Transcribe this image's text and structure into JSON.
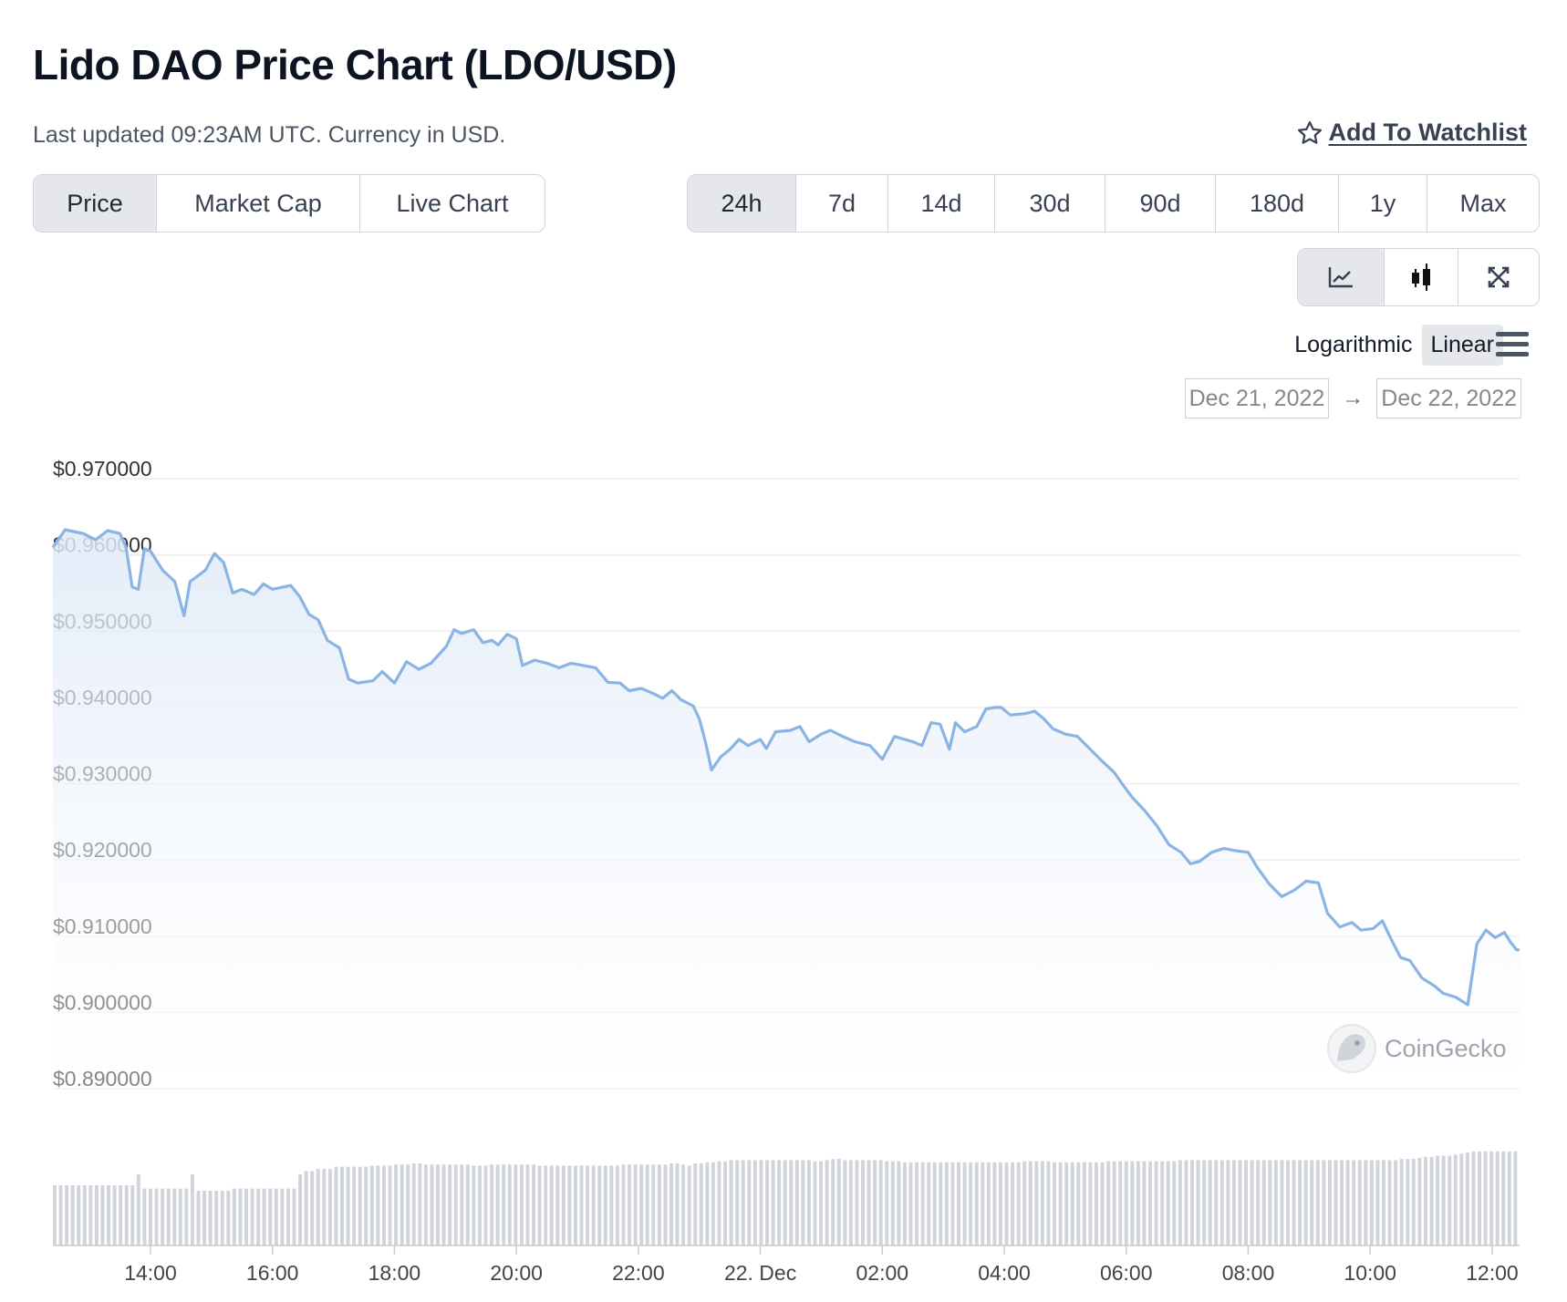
{
  "header": {
    "title": "Lido DAO Price Chart (LDO/USD)",
    "updated": "Last updated 09:23AM UTC. Currency in USD.",
    "watchlist_label": "Add To Watchlist"
  },
  "view_tabs": [
    {
      "label": "Price",
      "active": true
    },
    {
      "label": "Market Cap",
      "active": false
    },
    {
      "label": "Live Chart",
      "active": false
    }
  ],
  "range_tabs": [
    {
      "label": "24h",
      "active": true
    },
    {
      "label": "7d",
      "active": false
    },
    {
      "label": "14d",
      "active": false
    },
    {
      "label": "30d",
      "active": false
    },
    {
      "label": "90d",
      "active": false
    },
    {
      "label": "180d",
      "active": false
    },
    {
      "label": "1y",
      "active": false
    },
    {
      "label": "Max",
      "active": false
    }
  ],
  "tools": [
    "line-chart-icon",
    "candlestick-icon",
    "fullscreen-icon"
  ],
  "scale": {
    "options": [
      "Logarithmic",
      "Linear"
    ],
    "active": "Linear"
  },
  "date_range": {
    "from": "Dec 21, 2022",
    "to": "Dec 22, 2022",
    "arrow": "→"
  },
  "watermark": "CoinGecko",
  "colors": {
    "line": "#8ab4e3",
    "volume": "#d1d5db",
    "grid": "#eeeeee"
  },
  "chart_data": {
    "type": "line",
    "ylim": [
      0.89,
      0.97
    ],
    "y_ticks": [
      "$0.970000",
      "$0.960000",
      "$0.950000",
      "$0.940000",
      "$0.930000",
      "$0.920000",
      "$0.910000",
      "$0.900000",
      "$0.890000"
    ],
    "x_ticks": [
      {
        "label": "14:00",
        "t": 14
      },
      {
        "label": "16:00",
        "t": 16
      },
      {
        "label": "18:00",
        "t": 18
      },
      {
        "label": "20:00",
        "t": 20
      },
      {
        "label": "22:00",
        "t": 22
      },
      {
        "label": "22. Dec",
        "t": 24
      },
      {
        "label": "02:00",
        "t": 26
      },
      {
        "label": "04:00",
        "t": 28
      },
      {
        "label": "06:00",
        "t": 30
      },
      {
        "label": "08:00",
        "t": 32
      },
      {
        "label": "10:00",
        "t": 34
      },
      {
        "label": "12:00",
        "t": 36
      }
    ],
    "x_range": [
      12.4,
      36.45
    ],
    "series": [
      {
        "values": [
          [
            12.4,
            0.961
          ],
          [
            12.6,
            0.9633
          ],
          [
            12.9,
            0.9628
          ],
          [
            13.1,
            0.962
          ],
          [
            13.3,
            0.9632
          ],
          [
            13.5,
            0.9628
          ],
          [
            13.6,
            0.961
          ],
          [
            13.7,
            0.9558
          ],
          [
            13.8,
            0.9555
          ],
          [
            13.9,
            0.9608
          ],
          [
            14.0,
            0.9605
          ],
          [
            14.2,
            0.958
          ],
          [
            14.4,
            0.9565
          ],
          [
            14.55,
            0.952
          ],
          [
            14.65,
            0.9565
          ],
          [
            14.9,
            0.958
          ],
          [
            15.05,
            0.9602
          ],
          [
            15.2,
            0.959
          ],
          [
            15.35,
            0.955
          ],
          [
            15.5,
            0.9555
          ],
          [
            15.7,
            0.9548
          ],
          [
            15.85,
            0.9562
          ],
          [
            16.0,
            0.9555
          ],
          [
            16.3,
            0.956
          ],
          [
            16.45,
            0.9545
          ],
          [
            16.6,
            0.9522
          ],
          [
            16.75,
            0.9515
          ],
          [
            16.9,
            0.9488
          ],
          [
            17.1,
            0.9478
          ],
          [
            17.25,
            0.9437
          ],
          [
            17.4,
            0.9432
          ],
          [
            17.65,
            0.9435
          ],
          [
            17.8,
            0.9447
          ],
          [
            18.0,
            0.9432
          ],
          [
            18.2,
            0.946
          ],
          [
            18.4,
            0.945
          ],
          [
            18.6,
            0.9458
          ],
          [
            18.85,
            0.948
          ],
          [
            18.98,
            0.9502
          ],
          [
            19.1,
            0.9497
          ],
          [
            19.3,
            0.9502
          ],
          [
            19.45,
            0.9485
          ],
          [
            19.6,
            0.9488
          ],
          [
            19.7,
            0.9482
          ],
          [
            19.85,
            0.9496
          ],
          [
            20.0,
            0.949
          ],
          [
            20.1,
            0.9455
          ],
          [
            20.3,
            0.9462
          ],
          [
            20.5,
            0.9458
          ],
          [
            20.7,
            0.9452
          ],
          [
            20.9,
            0.9458
          ],
          [
            21.1,
            0.9455
          ],
          [
            21.3,
            0.9452
          ],
          [
            21.5,
            0.9433
          ],
          [
            21.7,
            0.9432
          ],
          [
            21.85,
            0.9422
          ],
          [
            22.05,
            0.9425
          ],
          [
            22.25,
            0.9418
          ],
          [
            22.4,
            0.9412
          ],
          [
            22.55,
            0.9422
          ],
          [
            22.7,
            0.941
          ],
          [
            22.9,
            0.9402
          ],
          [
            23.0,
            0.9385
          ],
          [
            23.1,
            0.9355
          ],
          [
            23.2,
            0.9318
          ],
          [
            23.35,
            0.9335
          ],
          [
            23.5,
            0.9345
          ],
          [
            23.65,
            0.9358
          ],
          [
            23.8,
            0.935
          ],
          [
            24.0,
            0.9358
          ],
          [
            24.1,
            0.9346
          ],
          [
            24.25,
            0.9368
          ],
          [
            24.5,
            0.937
          ],
          [
            24.65,
            0.9375
          ],
          [
            24.8,
            0.9355
          ],
          [
            25.0,
            0.9365
          ],
          [
            25.15,
            0.937
          ],
          [
            25.35,
            0.9362
          ],
          [
            25.55,
            0.9355
          ],
          [
            25.8,
            0.935
          ],
          [
            26.0,
            0.9332
          ],
          [
            26.2,
            0.9362
          ],
          [
            26.5,
            0.9355
          ],
          [
            26.65,
            0.935
          ],
          [
            26.8,
            0.938
          ],
          [
            26.95,
            0.9378
          ],
          [
            27.1,
            0.9345
          ],
          [
            27.2,
            0.938
          ],
          [
            27.35,
            0.9368
          ],
          [
            27.55,
            0.9375
          ],
          [
            27.7,
            0.9398
          ],
          [
            27.85,
            0.94
          ],
          [
            27.95,
            0.94
          ],
          [
            28.1,
            0.939
          ],
          [
            28.35,
            0.9392
          ],
          [
            28.5,
            0.9395
          ],
          [
            28.65,
            0.9385
          ],
          [
            28.8,
            0.9372
          ],
          [
            29.0,
            0.9365
          ],
          [
            29.2,
            0.9362
          ],
          [
            29.35,
            0.935
          ],
          [
            29.6,
            0.933
          ],
          [
            29.8,
            0.9315
          ],
          [
            29.95,
            0.9298
          ],
          [
            30.1,
            0.9282
          ],
          [
            30.3,
            0.9265
          ],
          [
            30.5,
            0.9245
          ],
          [
            30.7,
            0.922
          ],
          [
            30.9,
            0.921
          ],
          [
            31.05,
            0.9195
          ],
          [
            31.2,
            0.9198
          ],
          [
            31.4,
            0.921
          ],
          [
            31.6,
            0.9215
          ],
          [
            31.8,
            0.9212
          ],
          [
            32.0,
            0.921
          ],
          [
            32.15,
            0.919
          ],
          [
            32.35,
            0.9168
          ],
          [
            32.55,
            0.9152
          ],
          [
            32.75,
            0.916
          ],
          [
            32.95,
            0.9172
          ],
          [
            33.15,
            0.917
          ],
          [
            33.3,
            0.913
          ],
          [
            33.5,
            0.9112
          ],
          [
            33.7,
            0.9118
          ],
          [
            33.85,
            0.9108
          ],
          [
            34.05,
            0.911
          ],
          [
            34.2,
            0.912
          ],
          [
            34.35,
            0.9095
          ],
          [
            34.5,
            0.9072
          ],
          [
            34.65,
            0.9068
          ],
          [
            34.85,
            0.9045
          ],
          [
            35.05,
            0.9035
          ],
          [
            35.2,
            0.9025
          ],
          [
            35.4,
            0.902
          ],
          [
            35.6,
            0.901
          ],
          [
            35.75,
            0.909
          ],
          [
            35.9,
            0.9108
          ],
          [
            36.05,
            0.9098
          ],
          [
            36.2,
            0.9105
          ],
          [
            36.3,
            0.9092
          ],
          [
            36.4,
            0.9082
          ],
          [
            36.45,
            0.9082
          ]
        ]
      }
    ],
    "volume_relative": [
      0.55,
      0.55,
      0.55,
      0.55,
      0.55,
      0.55,
      0.55,
      0.55,
      0.55,
      0.55,
      0.55,
      0.55,
      0.55,
      0.55,
      0.65,
      0.52,
      0.52,
      0.52,
      0.52,
      0.52,
      0.52,
      0.52,
      0.52,
      0.65,
      0.5,
      0.5,
      0.5,
      0.5,
      0.5,
      0.5,
      0.52,
      0.52,
      0.52,
      0.52,
      0.52,
      0.52,
      0.52,
      0.52,
      0.52,
      0.52,
      0.52,
      0.65,
      0.68,
      0.68,
      0.7,
      0.7,
      0.7,
      0.72,
      0.72,
      0.72,
      0.72,
      0.72,
      0.72,
      0.73,
      0.73,
      0.73,
      0.73,
      0.74,
      0.74,
      0.74,
      0.75,
      0.75,
      0.74,
      0.74,
      0.74,
      0.74,
      0.74,
      0.74,
      0.74,
      0.74,
      0.73,
      0.73,
      0.73,
      0.74,
      0.74,
      0.74,
      0.74,
      0.74,
      0.74,
      0.74,
      0.74,
      0.73,
      0.73,
      0.73,
      0.73,
      0.73,
      0.73,
      0.73,
      0.73,
      0.73,
      0.73,
      0.73,
      0.73,
      0.73,
      0.73,
      0.74,
      0.74,
      0.74,
      0.74,
      0.74,
      0.74,
      0.74,
      0.74,
      0.75,
      0.75,
      0.74,
      0.73,
      0.75,
      0.75,
      0.76,
      0.76,
      0.77,
      0.77,
      0.78,
      0.78,
      0.78,
      0.78,
      0.78,
      0.78,
      0.78,
      0.78,
      0.78,
      0.78,
      0.78,
      0.78,
      0.78,
      0.78,
      0.77,
      0.77,
      0.78,
      0.79,
      0.79,
      0.78,
      0.78,
      0.78,
      0.78,
      0.78,
      0.78,
      0.78,
      0.77,
      0.77,
      0.77,
      0.76,
      0.76,
      0.76,
      0.76,
      0.76,
      0.76,
      0.76,
      0.76,
      0.76,
      0.76,
      0.76,
      0.76,
      0.76,
      0.76,
      0.76,
      0.76,
      0.76,
      0.76,
      0.76,
      0.76,
      0.77,
      0.77,
      0.77,
      0.77,
      0.77,
      0.76,
      0.76,
      0.76,
      0.76,
      0.76,
      0.76,
      0.76,
      0.76,
      0.76,
      0.77,
      0.77,
      0.77,
      0.77,
      0.77,
      0.77,
      0.77,
      0.77,
      0.77,
      0.77,
      0.77,
      0.77,
      0.78,
      0.78,
      0.78,
      0.78,
      0.78,
      0.78,
      0.78,
      0.78,
      0.78,
      0.78,
      0.78,
      0.78,
      0.78,
      0.78,
      0.78,
      0.78,
      0.78,
      0.78,
      0.78,
      0.78,
      0.78,
      0.78,
      0.78,
      0.78,
      0.78,
      0.78,
      0.78,
      0.78,
      0.78,
      0.78,
      0.78,
      0.78,
      0.78,
      0.78,
      0.78,
      0.78,
      0.78,
      0.79,
      0.79,
      0.79,
      0.8,
      0.81,
      0.81,
      0.82,
      0.82,
      0.82,
      0.83,
      0.84,
      0.85,
      0.86,
      0.86,
      0.86,
      0.86,
      0.86,
      0.86,
      0.86,
      0.86
    ]
  }
}
